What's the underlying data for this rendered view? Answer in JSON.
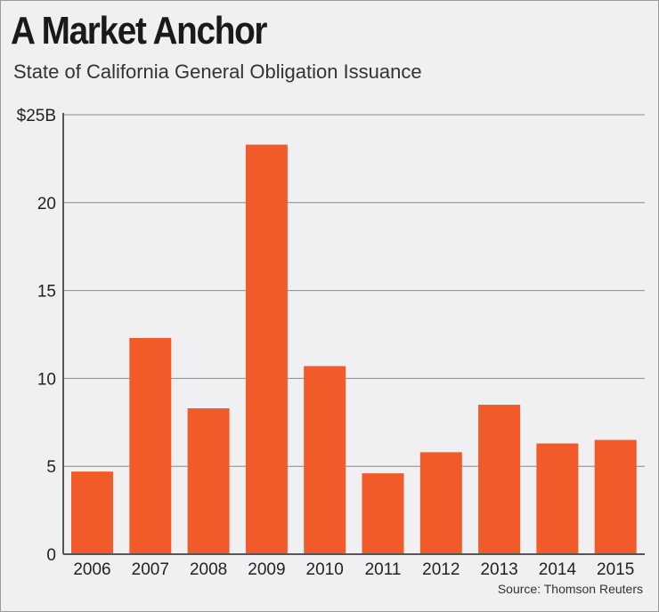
{
  "chart_data": {
    "type": "bar",
    "title": "A Market Anchor",
    "subtitle": "State of California General Obligation Issuance",
    "source": "Source: Thomson Reuters",
    "xlabel": "",
    "ylabel": "",
    "categories": [
      "2006",
      "2007",
      "2008",
      "2009",
      "2010",
      "2011",
      "2012",
      "2013",
      "2014",
      "2015"
    ],
    "values": [
      4.7,
      12.3,
      8.3,
      23.3,
      10.7,
      4.6,
      5.8,
      8.5,
      6.3,
      6.5
    ],
    "ylim": [
      0,
      25
    ],
    "yticks": [
      0,
      5,
      10,
      15,
      20,
      25
    ],
    "ytick_labels": [
      "0",
      "5",
      "10",
      "15",
      "20",
      "$25B"
    ],
    "grid": true,
    "bar_color": "#f15a29"
  }
}
